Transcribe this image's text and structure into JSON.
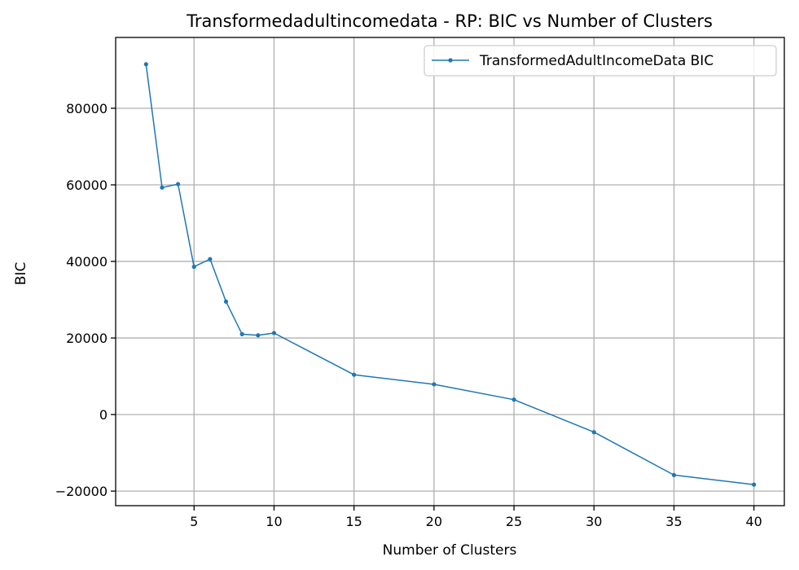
{
  "chart_data": {
    "type": "line",
    "title": "Transformedadultincomedata - RP: BIC vs Number of Clusters",
    "xlabel": "Number of Clusters",
    "ylabel": "BIC",
    "xlim": [
      0.1,
      41.9
    ],
    "ylim": [
      -23800,
      98500
    ],
    "x_ticks": [
      5,
      10,
      15,
      20,
      25,
      30,
      35,
      40
    ],
    "y_ticks": [
      -20000,
      0,
      20000,
      40000,
      60000,
      80000
    ],
    "grid": true,
    "legend_position": "top-right",
    "series": [
      {
        "name": "TransformedAdultIncomeData BIC",
        "color": "#1f77b4",
        "marker": "dot",
        "x": [
          2,
          3,
          4,
          5,
          6,
          7,
          8,
          9,
          10,
          15,
          20,
          25,
          30,
          35,
          40
        ],
        "y": [
          91500,
          59300,
          60200,
          38600,
          40600,
          29500,
          21000,
          20700,
          21300,
          10400,
          7900,
          3900,
          -4600,
          -15800,
          -18300
        ]
      }
    ]
  }
}
